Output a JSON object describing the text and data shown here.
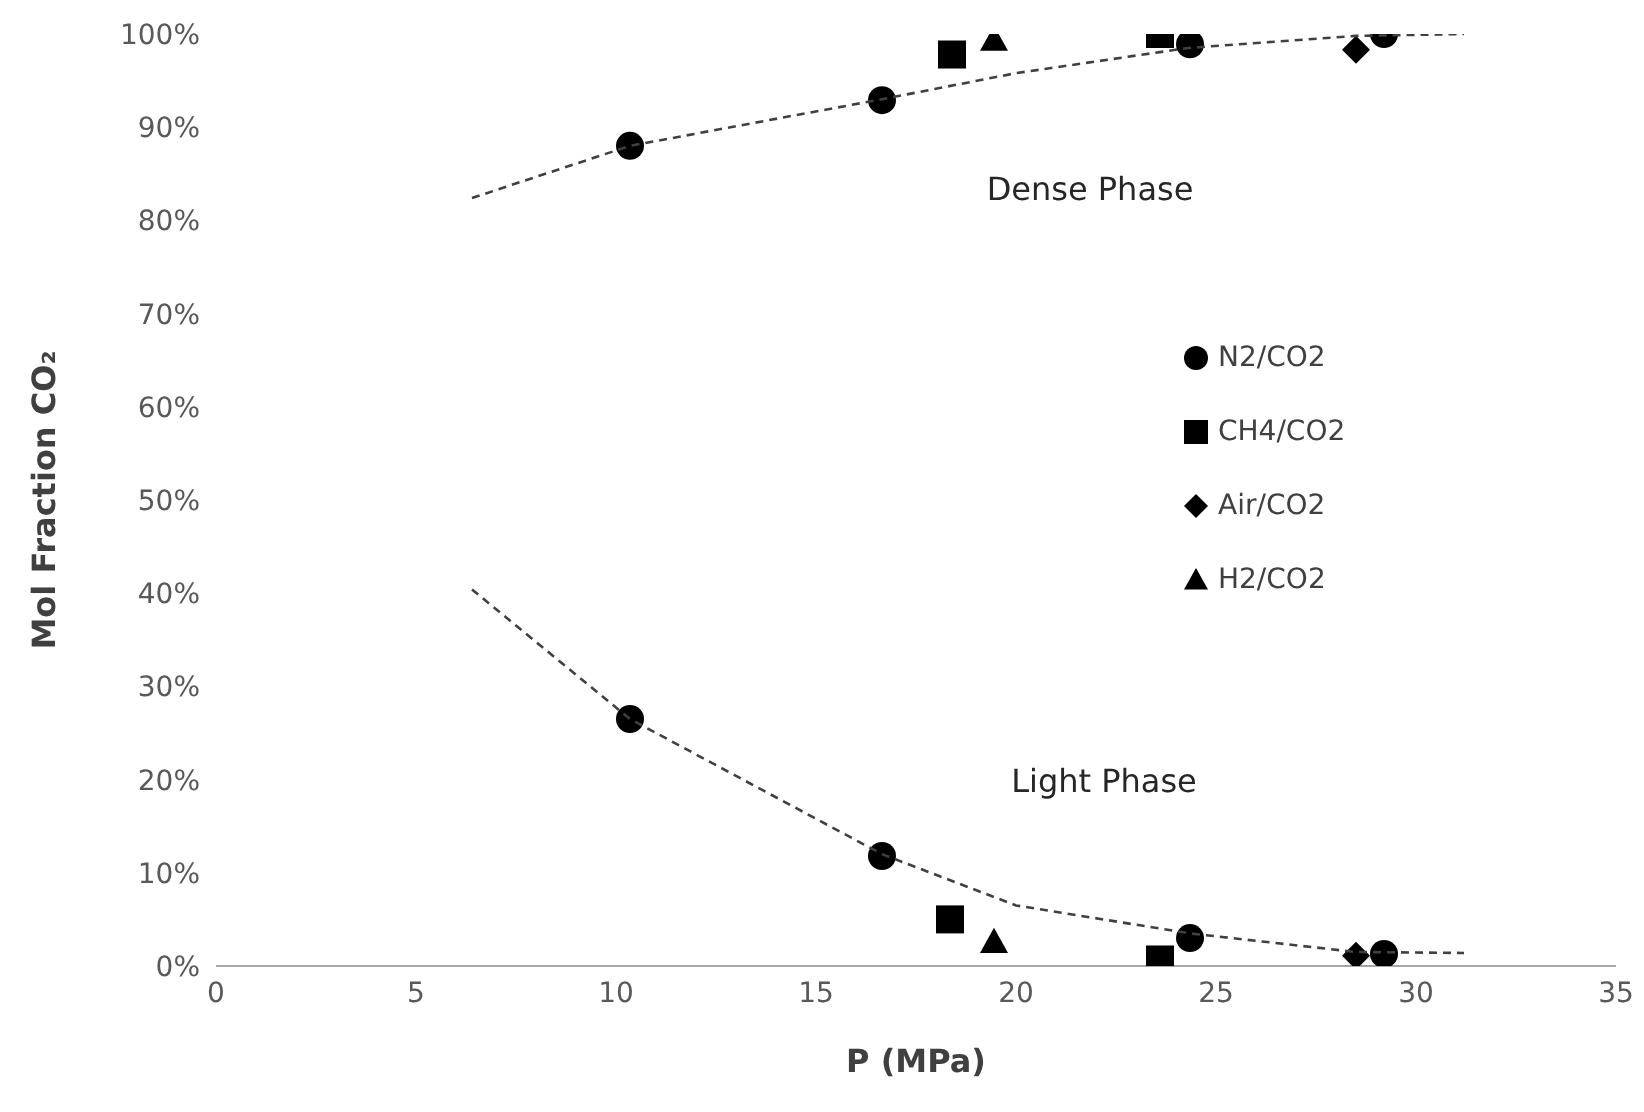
{
  "chart_data": {
    "type": "scatter",
    "xlabel": "P (MPa)",
    "ylabel": "Mol Fraction CO₂",
    "xlim": [
      0,
      35
    ],
    "xticks": [
      0,
      5,
      10,
      15,
      20,
      25,
      30,
      35
    ],
    "ylim": [
      0,
      100
    ],
    "yticks": [
      {
        "value": 0,
        "label": "0%"
      },
      {
        "value": 10,
        "label": "10%"
      },
      {
        "value": 20,
        "label": "20%"
      },
      {
        "value": 30,
        "label": "30%"
      },
      {
        "value": 40,
        "label": "40%"
      },
      {
        "value": 50,
        "label": "50%"
      },
      {
        "value": 60,
        "label": "60%"
      },
      {
        "value": 70,
        "label": "70%"
      },
      {
        "value": 80,
        "label": "80%"
      },
      {
        "value": 90,
        "label": "90%"
      },
      {
        "value": 100,
        "label": "100%"
      }
    ],
    "grid": false,
    "legend": "right",
    "series": [
      {
        "name": "N2/CO2",
        "color": "#000000",
        "marker": "circle",
        "x": [
          10.35,
          16.65,
          24.35,
          29.2,
          10.35,
          16.65,
          24.35,
          29.2
        ],
        "values": [
          88,
          92.9,
          98.9,
          100,
          26.5,
          11.8,
          3,
          1.3
        ]
      },
      {
        "name": "CH4/CO2",
        "color": "#000000",
        "marker": "square",
        "x": [
          18.4,
          23.6,
          18.35,
          23.6
        ],
        "values": [
          97.8,
          100,
          5,
          0.7
        ]
      },
      {
        "name": "Air/CO2",
        "color": "#000000",
        "marker": "diamond",
        "x": [
          28.5,
          28.5
        ],
        "values": [
          98.3,
          1.1
        ]
      },
      {
        "name": "H2/CO2",
        "color": "#000000",
        "marker": "triangle",
        "x": [
          19.45,
          19.45
        ],
        "values": [
          99.4,
          2.6
        ]
      },
      {
        "type": "line",
        "color": "#404040",
        "marker": "none",
        "line_style": "dashed",
        "x": [
          6.4,
          10.35,
          16.65,
          20,
          24.3,
          28.5,
          31.2
        ],
        "values": [
          82.4,
          88,
          93,
          95.8,
          98.5,
          99.8,
          100
        ]
      },
      {
        "type": "line",
        "color": "#404040",
        "marker": "none",
        "line_style": "dashed",
        "x": [
          6.4,
          10.35,
          16.65,
          20,
          24.35,
          28.5,
          31.2
        ],
        "values": [
          40.4,
          26.5,
          12,
          6.5,
          3.5,
          1.5,
          1.4
        ]
      }
    ],
    "annotations": [
      "Dense Phase",
      "Light Phase"
    ]
  }
}
